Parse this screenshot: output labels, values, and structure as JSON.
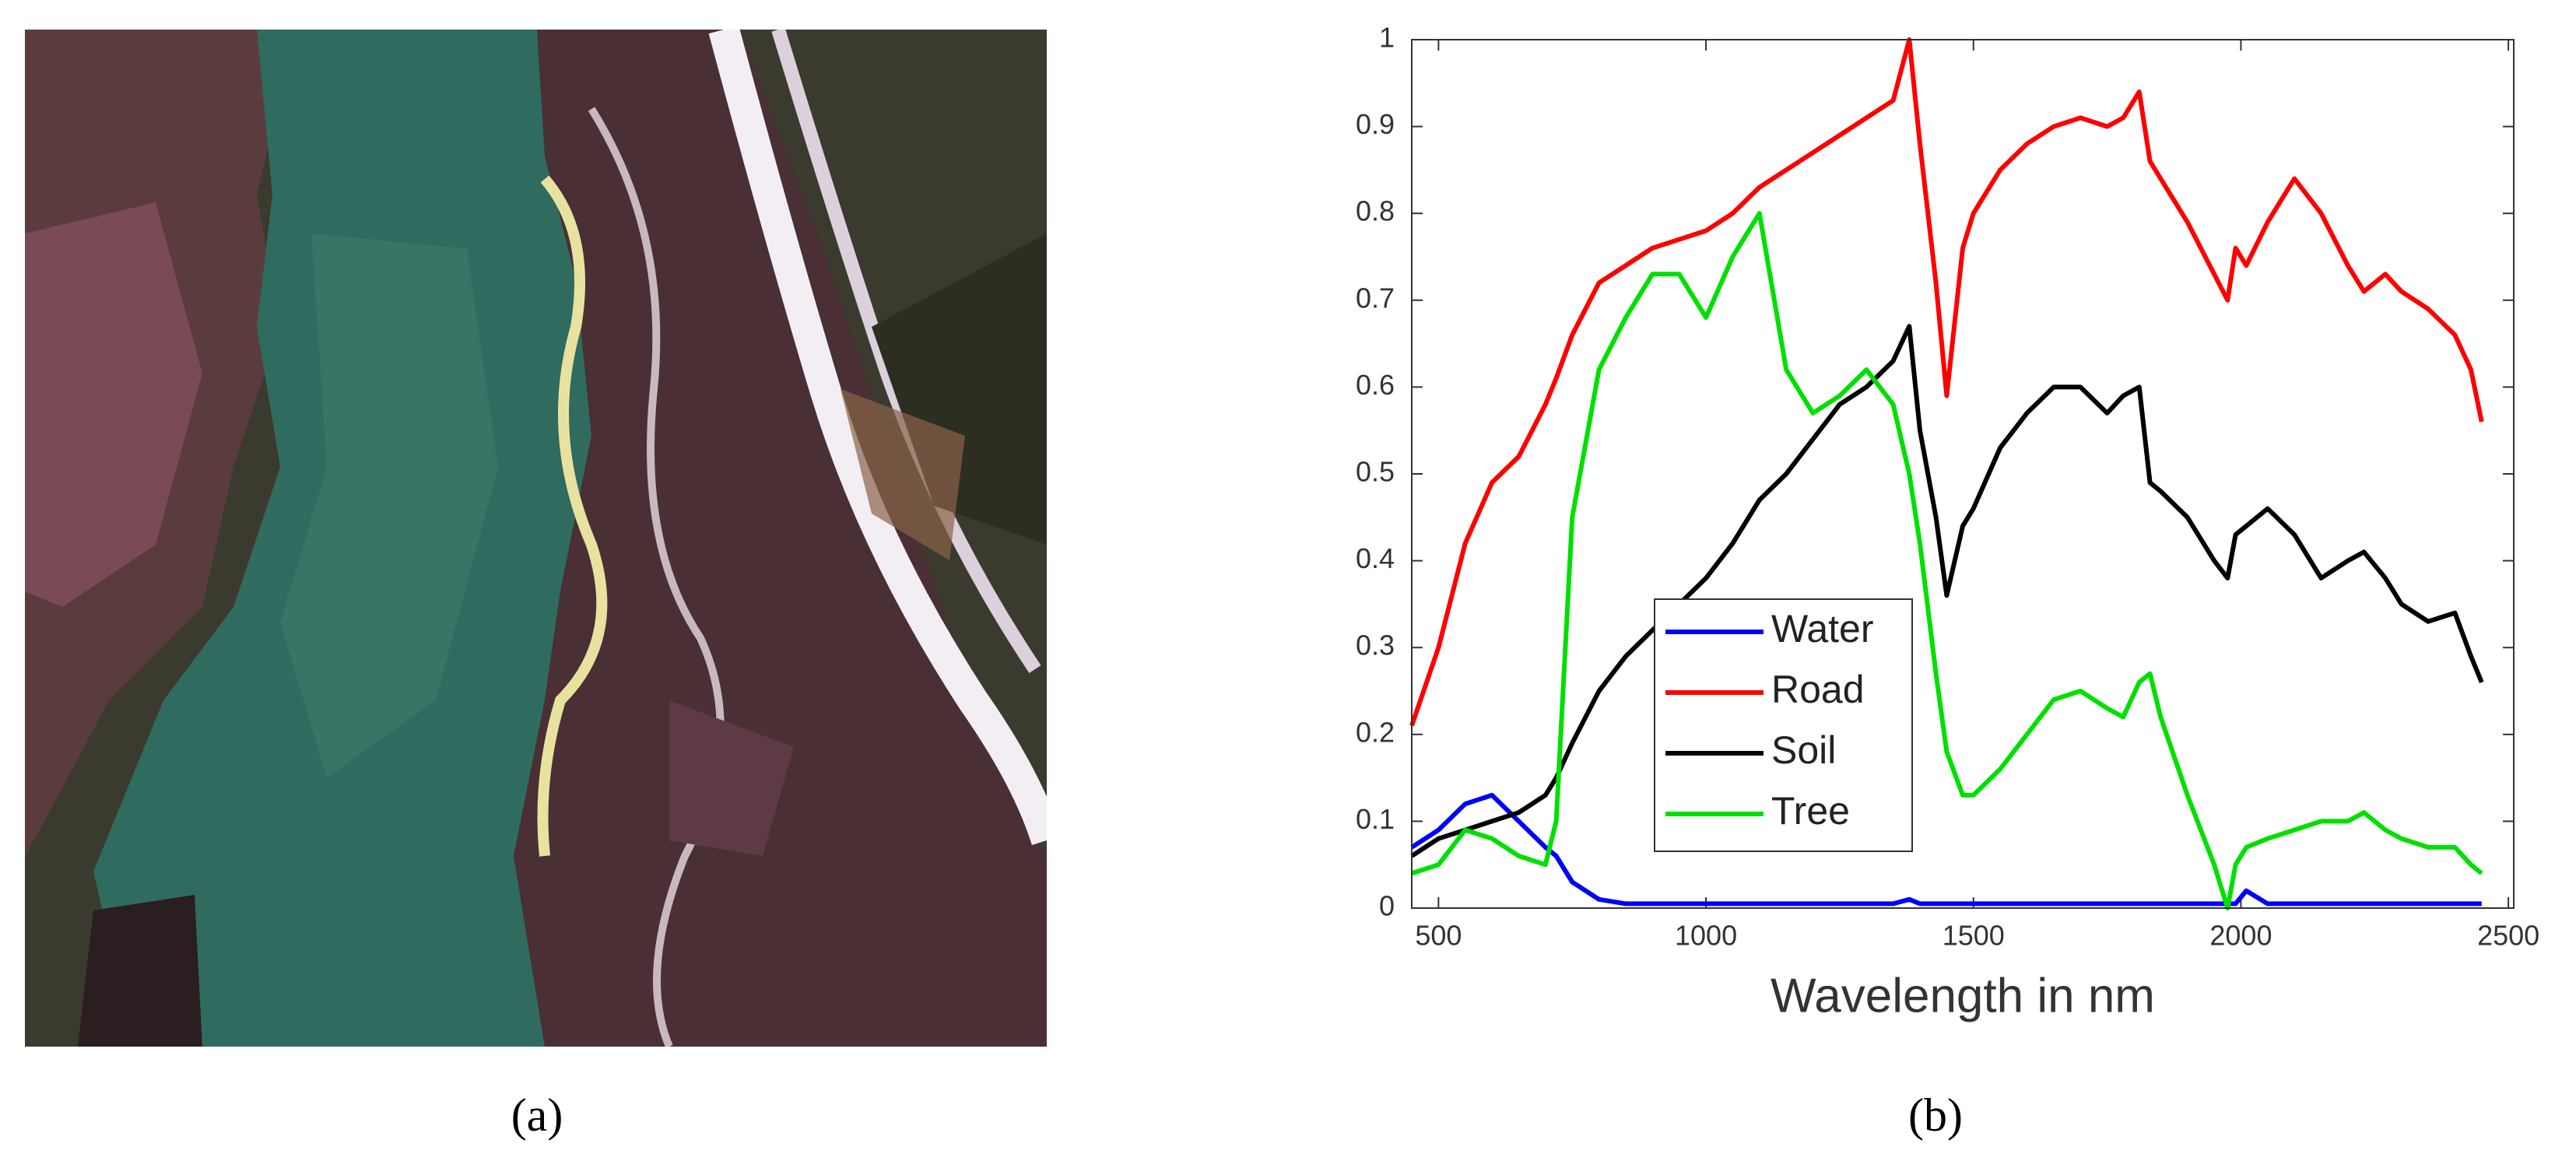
{
  "panels": [
    {
      "label": "(a)"
    },
    {
      "label": "(b)"
    }
  ],
  "chart_data": {
    "type": "line",
    "xlabel": "Wavelength in nm",
    "x": [
      450,
      500,
      550,
      600,
      650,
      700,
      720,
      750,
      800,
      850,
      900,
      950,
      1000,
      1050,
      1100,
      1150,
      1200,
      1250,
      1300,
      1350,
      1380,
      1400,
      1430,
      1450,
      1480,
      1500,
      1550,
      1600,
      1650,
      1700,
      1750,
      1780,
      1810,
      1830,
      1850,
      1900,
      1950,
      1975,
      1990,
      2010,
      2050,
      2100,
      2150,
      2200,
      2230,
      2270,
      2300,
      2350,
      2400,
      2430,
      2450
    ],
    "series": [
      {
        "name": "Water",
        "color": "#0000ff",
        "values": [
          0.07,
          0.09,
          0.12,
          0.13,
          0.1,
          0.07,
          0.06,
          0.03,
          0.01,
          0.005,
          0.005,
          0.005,
          0.005,
          0.005,
          0.005,
          0.005,
          0.005,
          0.005,
          0.005,
          0.005,
          0.01,
          0.005,
          0.005,
          0.005,
          0.005,
          0.005,
          0.005,
          0.005,
          0.005,
          0.005,
          0.005,
          0.005,
          0.005,
          0.005,
          0.005,
          0.005,
          0.005,
          0.005,
          0.005,
          0.02,
          0.005,
          0.005,
          0.005,
          0.005,
          0.005,
          0.005,
          0.005,
          0.005,
          0.005,
          0.005,
          0.005
        ]
      },
      {
        "name": "Road",
        "color": "#ff0000",
        "values": [
          0.21,
          0.3,
          0.42,
          0.49,
          0.52,
          0.58,
          0.61,
          0.66,
          0.72,
          0.74,
          0.76,
          0.77,
          0.78,
          0.8,
          0.83,
          0.85,
          0.87,
          0.89,
          0.91,
          0.93,
          1.0,
          0.88,
          0.72,
          0.59,
          0.76,
          0.8,
          0.85,
          0.88,
          0.9,
          0.91,
          0.9,
          0.91,
          0.94,
          0.86,
          0.84,
          0.79,
          0.73,
          0.7,
          0.76,
          0.74,
          0.79,
          0.84,
          0.8,
          0.74,
          0.71,
          0.73,
          0.71,
          0.69,
          0.66,
          0.62,
          0.56
        ]
      },
      {
        "name": "Soil",
        "color": "#000000",
        "values": [
          0.06,
          0.08,
          0.09,
          0.1,
          0.11,
          0.13,
          0.15,
          0.19,
          0.25,
          0.29,
          0.32,
          0.35,
          0.38,
          0.42,
          0.47,
          0.5,
          0.54,
          0.58,
          0.6,
          0.63,
          0.67,
          0.55,
          0.45,
          0.36,
          0.44,
          0.46,
          0.53,
          0.57,
          0.6,
          0.6,
          0.57,
          0.59,
          0.6,
          0.49,
          0.48,
          0.45,
          0.4,
          0.38,
          0.43,
          0.44,
          0.46,
          0.43,
          0.38,
          0.4,
          0.41,
          0.38,
          0.35,
          0.33,
          0.34,
          0.29,
          0.26
        ]
      },
      {
        "name": "Tree",
        "color": "#00e000",
        "values": [
          0.04,
          0.05,
          0.09,
          0.08,
          0.06,
          0.05,
          0.1,
          0.45,
          0.62,
          0.68,
          0.73,
          0.73,
          0.68,
          0.75,
          0.8,
          0.62,
          0.57,
          0.59,
          0.62,
          0.58,
          0.5,
          0.42,
          0.27,
          0.18,
          0.13,
          0.13,
          0.16,
          0.2,
          0.24,
          0.25,
          0.23,
          0.22,
          0.26,
          0.27,
          0.22,
          0.13,
          0.05,
          0,
          0.05,
          0.07,
          0.08,
          0.09,
          0.1,
          0.1,
          0.11,
          0.09,
          0.08,
          0.07,
          0.07,
          0.05,
          0.04
        ]
      }
    ],
    "xlim": [
      450,
      2510
    ],
    "ylim": [
      0,
      1
    ],
    "xticks": [
      500,
      1000,
      1500,
      2000,
      2500
    ],
    "yticks": [
      0,
      0.1,
      0.2,
      0.3,
      0.4,
      0.5,
      0.6,
      0.7,
      0.8,
      0.9,
      1
    ]
  }
}
